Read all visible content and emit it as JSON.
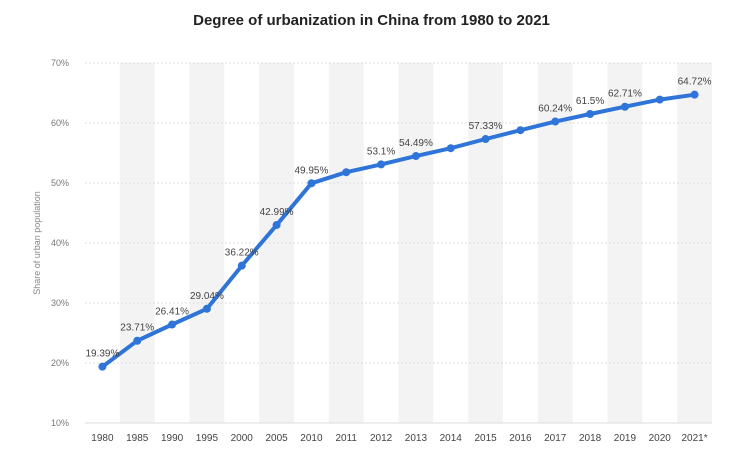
{
  "chart_data": {
    "type": "line",
    "title": "Degree of urbanization in China from 1980 to 2021",
    "ylabel": "Share of urban population",
    "xlabel": "",
    "ylim": [
      10,
      70
    ],
    "yticks": [
      "10%",
      "20%",
      "30%",
      "40%",
      "50%",
      "60%",
      "70%"
    ],
    "grid": true,
    "color": "#2f74d9",
    "categories": [
      "1980",
      "1985",
      "1990",
      "1995",
      "2000",
      "2005",
      "2010",
      "2011",
      "2012",
      "2013",
      "2014",
      "2015",
      "2016",
      "2017",
      "2018",
      "2019",
      "2020",
      "2021*"
    ],
    "series": [
      {
        "values": [
          19.39,
          23.71,
          26.41,
          29.04,
          36.22,
          42.99,
          49.95,
          51.8,
          53.1,
          54.49,
          55.8,
          57.33,
          58.8,
          60.24,
          61.5,
          62.71,
          63.9,
          64.72
        ]
      }
    ],
    "data_labels": [
      "19.39%",
      "23.71%",
      "26.41%",
      "29.04%",
      "36.22%",
      "42.99%",
      "49.95%",
      "",
      "53.1%",
      "54.49%",
      "",
      "57.33%",
      "",
      "60.24%",
      "61.5%",
      "62.71%",
      "",
      "64.72%"
    ]
  }
}
